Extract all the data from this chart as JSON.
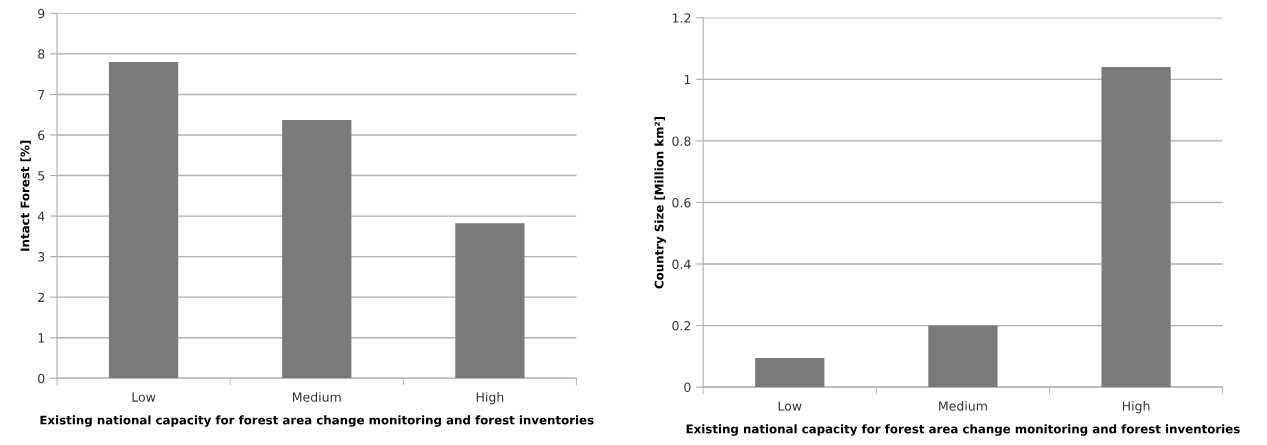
{
  "chart_data": [
    {
      "type": "bar",
      "xlabel": "Existing national capacity for forest area change monitoring and forest inventories",
      "ylabel": "Intact Forest [%]",
      "categories": [
        "Low",
        "Medium",
        "High"
      ],
      "values": [
        7.8,
        6.37,
        3.82
      ],
      "color": "#7a7a7a",
      "ylim": [
        0,
        9
      ],
      "yticks": [
        0,
        1,
        2,
        3,
        4,
        5,
        6,
        7,
        8,
        9
      ],
      "grid": "y",
      "legend": false
    },
    {
      "type": "bar",
      "xlabel": "Existing national capacity for forest area change monitoring and forest inventories",
      "ylabel": "Country Size [Million km²]",
      "categories": [
        "Low",
        "Medium",
        "High"
      ],
      "values": [
        0.095,
        0.2,
        1.04
      ],
      "color": "#7a7a7a",
      "ylim": [
        0,
        1.2
      ],
      "yticks": [
        0,
        0.2,
        0.4,
        0.6,
        0.8,
        1,
        1.2
      ],
      "grid": "y",
      "legend": false
    }
  ]
}
